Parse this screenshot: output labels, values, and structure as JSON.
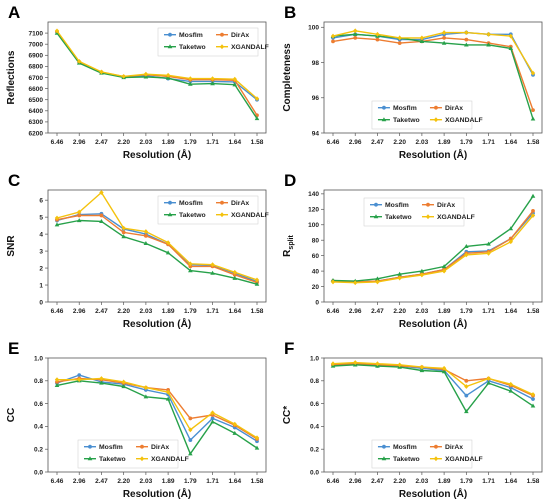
{
  "figure": {
    "series_colors": {
      "Mosflm": "#4a8fd1",
      "DirAx": "#ed7d31",
      "Taketwo": "#27a14a",
      "XGANDALF": "#f4c20d"
    }
  },
  "chart_data": [
    {
      "panel": "A",
      "type": "line",
      "categories": [
        "6.46",
        "2.96",
        "2.47",
        "2.20",
        "2.03",
        "1.89",
        "1.79",
        "1.71",
        "1.64",
        "1.58"
      ],
      "xlabel": "Resolution (Å)",
      "ylabel": "Reflections",
      "ylim": [
        6200,
        7200
      ],
      "yticks": [
        6200,
        6300,
        6400,
        6500,
        6600,
        6700,
        6800,
        6900,
        7000,
        7100
      ],
      "legend_position": "top-right",
      "series": [
        {
          "name": "Mosflm",
          "values": [
            7110,
            6835,
            6745,
            6705,
            6715,
            6690,
            6665,
            6665,
            6660,
            6500
          ]
        },
        {
          "name": "DirAx",
          "values": [
            7115,
            6840,
            6748,
            6708,
            6725,
            6710,
            6680,
            6680,
            6675,
            6360
          ]
        },
        {
          "name": "Taketwo",
          "values": [
            7100,
            6830,
            6740,
            6700,
            6705,
            6695,
            6640,
            6645,
            6635,
            6330
          ]
        },
        {
          "name": "XGANDALF",
          "values": [
            7120,
            6845,
            6750,
            6710,
            6730,
            6720,
            6690,
            6690,
            6685,
            6510
          ]
        }
      ]
    },
    {
      "panel": "B",
      "type": "line",
      "categories": [
        "6.46",
        "2.96",
        "2.47",
        "2.20",
        "2.03",
        "1.89",
        "1.79",
        "1.71",
        "1.64",
        "1.58"
      ],
      "xlabel": "Resolution (Å)",
      "ylabel": "Completeness",
      "ylim": [
        94,
        100.3
      ],
      "yticks": [
        94,
        96,
        98,
        100
      ],
      "legend_position": "lower-center",
      "series": [
        {
          "name": "Mosflm",
          "values": [
            99.4,
            99.6,
            99.5,
            99.3,
            99.3,
            99.6,
            99.7,
            99.6,
            99.6,
            97.3
          ]
        },
        {
          "name": "DirAx",
          "values": [
            99.2,
            99.4,
            99.3,
            99.1,
            99.2,
            99.4,
            99.3,
            99.1,
            98.9,
            95.3
          ]
        },
        {
          "name": "Taketwo",
          "values": [
            99.5,
            99.6,
            99.5,
            99.4,
            99.2,
            99.1,
            99.0,
            99.0,
            98.8,
            94.8
          ]
        },
        {
          "name": "XGANDALF",
          "values": [
            99.5,
            99.8,
            99.6,
            99.4,
            99.4,
            99.7,
            99.7,
            99.6,
            99.5,
            97.4
          ]
        }
      ]
    },
    {
      "panel": "C",
      "type": "line",
      "categories": [
        "6.46",
        "2.96",
        "2.47",
        "2.20",
        "2.03",
        "1.89",
        "1.79",
        "1.71",
        "1.64",
        "1.58"
      ],
      "xlabel": "Resolution (Å)",
      "ylabel": "SNR",
      "ylim": [
        0,
        6.6
      ],
      "yticks": [
        0,
        1,
        2,
        3,
        4,
        5,
        6
      ],
      "legend_position": "top-right",
      "series": [
        {
          "name": "Mosflm",
          "values": [
            4.8,
            5.15,
            5.2,
            4.3,
            4.0,
            3.4,
            2.2,
            2.15,
            1.7,
            1.2
          ]
        },
        {
          "name": "DirAx",
          "values": [
            4.85,
            5.1,
            5.1,
            4.1,
            3.9,
            3.4,
            2.1,
            2.1,
            1.6,
            1.15
          ]
        },
        {
          "name": "Taketwo",
          "values": [
            4.55,
            4.8,
            4.75,
            3.85,
            3.45,
            2.9,
            1.85,
            1.7,
            1.4,
            1.05
          ]
        },
        {
          "name": "XGANDALF",
          "values": [
            4.95,
            5.3,
            6.45,
            4.35,
            4.15,
            3.5,
            2.25,
            2.2,
            1.75,
            1.3
          ]
        }
      ]
    },
    {
      "panel": "D",
      "type": "line",
      "categories": [
        "6.46",
        "2.96",
        "2.47",
        "2.20",
        "2.03",
        "1.89",
        "1.79",
        "1.71",
        "1.64",
        "1.58"
      ],
      "xlabel": "Resolution (Å)",
      "ylabel": "R",
      "ylabel_sub": "split",
      "ylim": [
        0,
        145
      ],
      "yticks": [
        0,
        20,
        40,
        60,
        80,
        100,
        120,
        140
      ],
      "legend_position": "top-left",
      "series": [
        {
          "name": "Mosflm",
          "values": [
            27,
            26,
            27,
            32,
            36,
            42,
            65,
            66,
            82,
            115
          ]
        },
        {
          "name": "DirAx",
          "values": [
            27,
            26,
            27,
            32,
            36,
            42,
            63,
            65,
            82,
            118
          ]
        },
        {
          "name": "Taketwo",
          "values": [
            28,
            27,
            30,
            36,
            40,
            46,
            72,
            75,
            95,
            137
          ]
        },
        {
          "name": "XGANDALF",
          "values": [
            26,
            25,
            26,
            31,
            35,
            40,
            61,
            63,
            78,
            112
          ]
        }
      ]
    },
    {
      "panel": "E",
      "type": "line",
      "categories": [
        "6.46",
        "2.96",
        "2.47",
        "2.20",
        "2.03",
        "1.89",
        "1.79",
        "1.71",
        "1.64",
        "1.58"
      ],
      "xlabel": "Resolution (Å)",
      "ylabel": "CC",
      "ylim": [
        0,
        1.0
      ],
      "yticks": [
        0.0,
        0.2,
        0.4,
        0.6,
        0.8,
        1.0
      ],
      "legend_position": "lower-left",
      "series": [
        {
          "name": "Mosflm",
          "values": [
            0.78,
            0.85,
            0.79,
            0.77,
            0.72,
            0.68,
            0.28,
            0.47,
            0.39,
            0.27
          ]
        },
        {
          "name": "DirAx",
          "values": [
            0.79,
            0.82,
            0.81,
            0.78,
            0.74,
            0.72,
            0.47,
            0.5,
            0.41,
            0.29
          ]
        },
        {
          "name": "Taketwo",
          "values": [
            0.76,
            0.8,
            0.78,
            0.75,
            0.66,
            0.64,
            0.16,
            0.44,
            0.34,
            0.21
          ]
        },
        {
          "name": "XGANDALF",
          "values": [
            0.81,
            0.81,
            0.82,
            0.79,
            0.74,
            0.7,
            0.37,
            0.52,
            0.42,
            0.3
          ]
        }
      ]
    },
    {
      "panel": "F",
      "type": "line",
      "categories": [
        "6.46",
        "2.96",
        "2.47",
        "2.20",
        "2.03",
        "1.89",
        "1.79",
        "1.71",
        "1.64",
        "1.58"
      ],
      "xlabel": "Resolution (Å)",
      "ylabel": "CC*",
      "ylim": [
        0,
        1.0
      ],
      "yticks": [
        0.0,
        0.2,
        0.4,
        0.6,
        0.8,
        1.0
      ],
      "legend_position": "lower-center",
      "series": [
        {
          "name": "Mosflm",
          "values": [
            0.94,
            0.95,
            0.93,
            0.93,
            0.91,
            0.89,
            0.67,
            0.8,
            0.74,
            0.64
          ]
        },
        {
          "name": "DirAx",
          "values": [
            0.94,
            0.95,
            0.94,
            0.93,
            0.92,
            0.9,
            0.8,
            0.82,
            0.76,
            0.67
          ]
        },
        {
          "name": "Taketwo",
          "values": [
            0.93,
            0.94,
            0.93,
            0.92,
            0.89,
            0.88,
            0.53,
            0.78,
            0.71,
            0.58
          ]
        },
        {
          "name": "XGANDALF",
          "values": [
            0.95,
            0.96,
            0.95,
            0.94,
            0.92,
            0.91,
            0.75,
            0.82,
            0.77,
            0.68
          ]
        }
      ]
    }
  ]
}
